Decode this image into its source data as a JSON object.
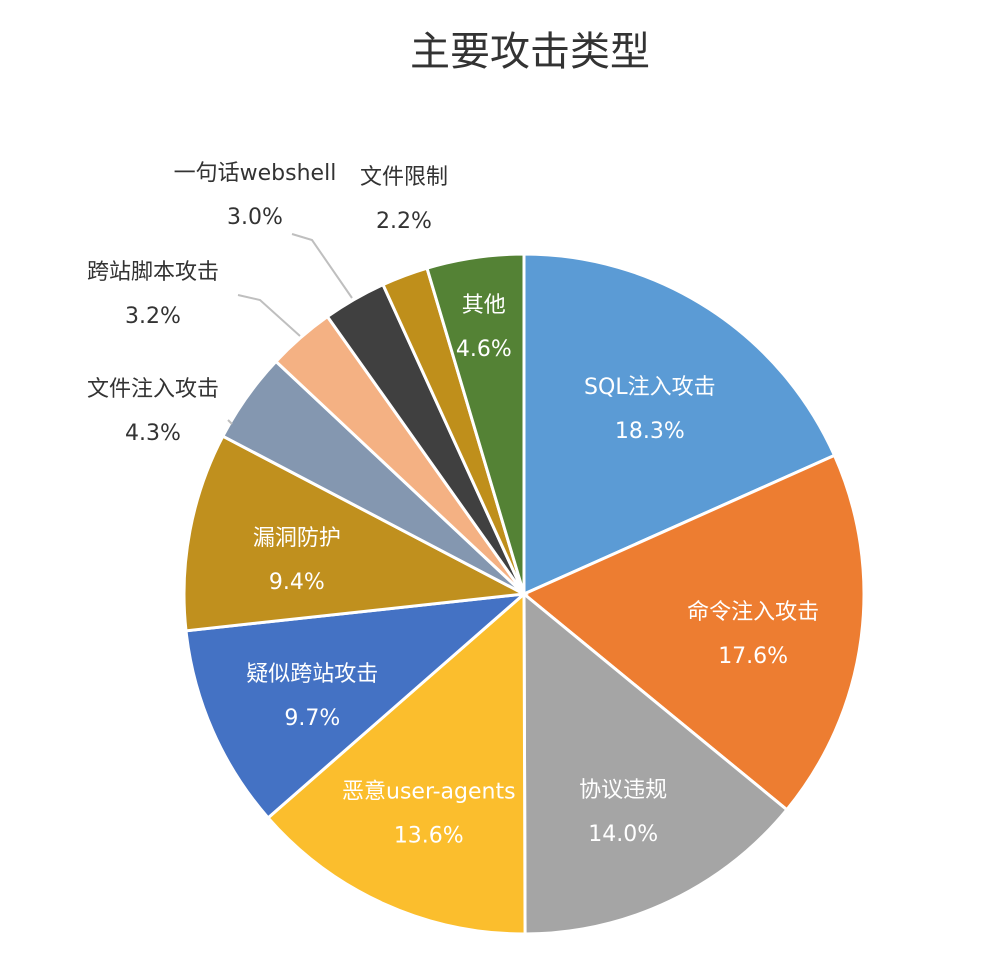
{
  "chart_data": {
    "type": "pie",
    "title": "主要攻击类型",
    "slices": [
      {
        "label": "SQL注入攻击",
        "value": 18.3,
        "display": "18.3%",
        "color": "#5b9bd5",
        "label_pos": "inside"
      },
      {
        "label": "命令注入攻击",
        "value": 17.6,
        "display": "17.6%",
        "color": "#ed7d31",
        "label_pos": "inside"
      },
      {
        "label": "协议违规",
        "value": 14.0,
        "display": "14.0%",
        "color": "#a5a5a5",
        "label_pos": "inside"
      },
      {
        "label": "恶意user-agents",
        "value": 13.6,
        "display": "13.6%",
        "color": "#fbbe2d",
        "label_pos": "inside"
      },
      {
        "label": "疑似跨站攻击",
        "value": 9.7,
        "display": "9.7%",
        "color": "#4472c4",
        "label_pos": "inside"
      },
      {
        "label": "漏洞防护",
        "value": 9.4,
        "display": "9.4%",
        "color": "#c0901e",
        "label_pos": "inside"
      },
      {
        "label": "文件注入攻击",
        "value": 4.3,
        "display": "4.3%",
        "color": "#8497b0",
        "label_pos": "outside"
      },
      {
        "label": "跨站脚本攻击",
        "value": 3.2,
        "display": "3.2%",
        "color": "#f4b183",
        "label_pos": "outside"
      },
      {
        "label": "一句话webshell",
        "value": 3.0,
        "display": "3.0%",
        "color": "#404040",
        "label_pos": "outside"
      },
      {
        "label": "文件限制",
        "value": 2.2,
        "display": "2.2%",
        "color": "#bf8f1b",
        "label_pos": "outside"
      },
      {
        "label": "其他",
        "value": 4.6,
        "display": "4.6%",
        "color": "#548235",
        "label_pos": "inside"
      }
    ]
  }
}
